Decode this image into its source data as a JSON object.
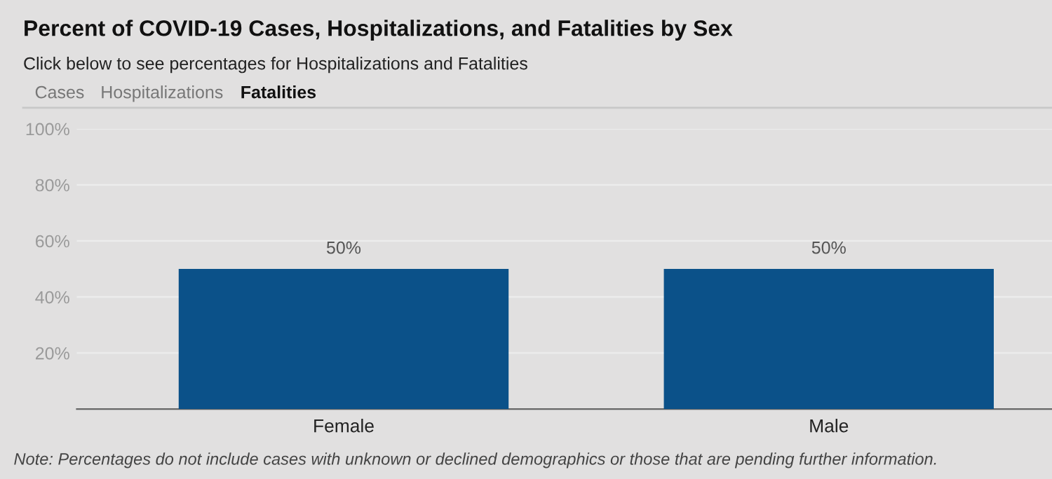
{
  "chart_data": {
    "type": "bar",
    "title": "Percent of COVID-19 Cases, Hospitalizations, and Fatalities by Sex",
    "subtitle": "Click below to see percentages for Hospitalizations and Fatalities",
    "annotations": [
      "Cases",
      "Hospitalizations",
      "Fatalities",
      "Note: Percentages do not include cases with unknown or declined demographics or those that are pending further information."
    ],
    "categories": [
      "Female",
      "Male"
    ],
    "values": [
      50,
      50
    ],
    "value_labels": [
      "50%",
      "50%"
    ],
    "color": "#0b5189",
    "ylim": [
      0,
      100
    ],
    "yticks": [
      {
        "value": 20,
        "label": "20%"
      },
      {
        "value": 40,
        "label": "40%"
      },
      {
        "value": 60,
        "label": "60%"
      },
      {
        "value": 80,
        "label": "80%"
      },
      {
        "value": 100,
        "label": "100%"
      }
    ],
    "grid": "y"
  }
}
